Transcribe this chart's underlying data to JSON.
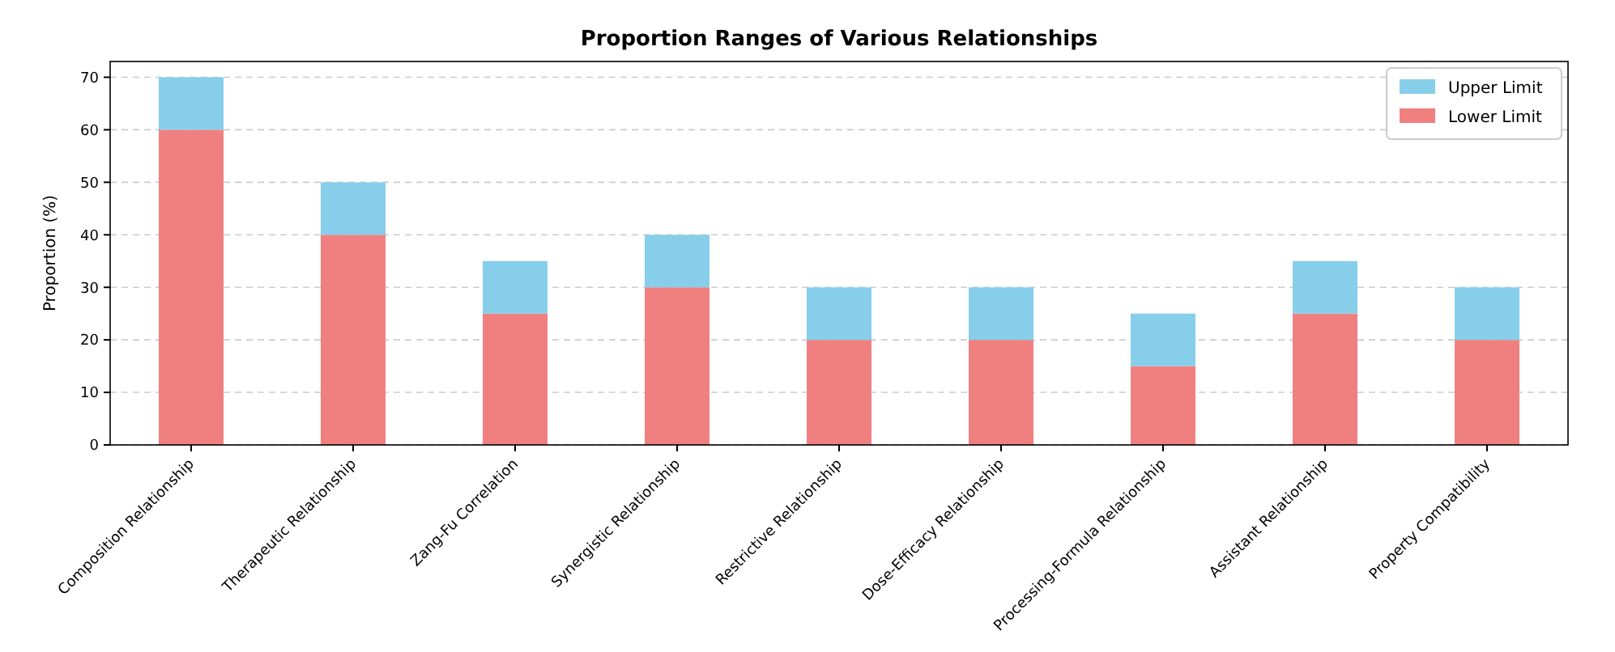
{
  "chart_data": {
    "type": "bar",
    "title": "Proportion Ranges of Various Relationships",
    "ylabel": "Proportion (%)",
    "categories": [
      "Composition Relationship",
      "Therapeutic Relationship",
      "Zang-Fu Correlation",
      "Synergistic Relationship",
      "Restrictive Relationship",
      "Dose-Efficacy Relationship",
      "Processing-Formula Relationship",
      "Assistant Relationship",
      "Property Compatibility"
    ],
    "series": [
      {
        "name": "Lower Limit",
        "color": "#f08080",
        "values": [
          60,
          40,
          25,
          30,
          20,
          20,
          15,
          25,
          20
        ]
      },
      {
        "name": "Upper Limit",
        "color": "#87ceeb",
        "values": [
          10,
          10,
          10,
          10,
          10,
          10,
          10,
          10,
          10
        ]
      }
    ],
    "stacked": true,
    "ylim": [
      0,
      73
    ],
    "yticks": [
      0,
      10,
      20,
      30,
      40,
      50,
      60,
      70
    ],
    "grid": "y",
    "legend": "top right"
  }
}
